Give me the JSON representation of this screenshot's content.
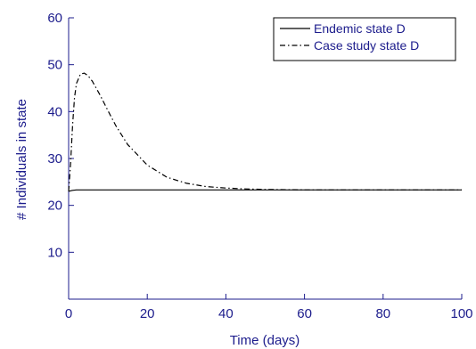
{
  "chart_data": {
    "type": "line",
    "xlabel": "Time (days)",
    "ylabel": "# Individuals in state",
    "xlim": [
      0,
      100
    ],
    "ylim": [
      0,
      60
    ],
    "xticks": [
      0,
      20,
      40,
      60,
      80,
      100
    ],
    "yticks": [
      10,
      20,
      30,
      40,
      50,
      60
    ],
    "ytick_labels_shown": [
      "10",
      "20",
      "30",
      "40",
      "50",
      "60"
    ],
    "xtick_labels_shown": [
      "0",
      "20",
      "40",
      "60",
      "80",
      "100"
    ],
    "grid": false,
    "legend_position": "top-right",
    "colors": {
      "text": "#1c1c8c",
      "axes": "#1c1c8c",
      "series": "#000000"
    },
    "series": [
      {
        "name": "Endemic state D",
        "style": "solid",
        "x": [
          0,
          0.5,
          1,
          2,
          5,
          10,
          20,
          40,
          60,
          80,
          100
        ],
        "y": [
          23,
          23.1,
          23.2,
          23.3,
          23.3,
          23.3,
          23.3,
          23.3,
          23.3,
          23.3,
          23.3
        ]
      },
      {
        "name": "Case study state D",
        "style": "dashdot",
        "x": [
          0,
          0.5,
          1,
          1.5,
          2,
          3,
          4,
          5,
          6,
          8,
          10,
          12,
          15,
          20,
          25,
          30,
          35,
          40,
          45,
          50,
          60,
          70,
          80,
          90,
          100
        ],
        "y": [
          23,
          29,
          37,
          43,
          46,
          48,
          48.2,
          47.6,
          46.5,
          43.5,
          40.2,
          37.0,
          33.0,
          28.6,
          26.0,
          24.7,
          24.0,
          23.7,
          23.5,
          23.4,
          23.3,
          23.3,
          23.3,
          23.3,
          23.3
        ]
      }
    ]
  }
}
